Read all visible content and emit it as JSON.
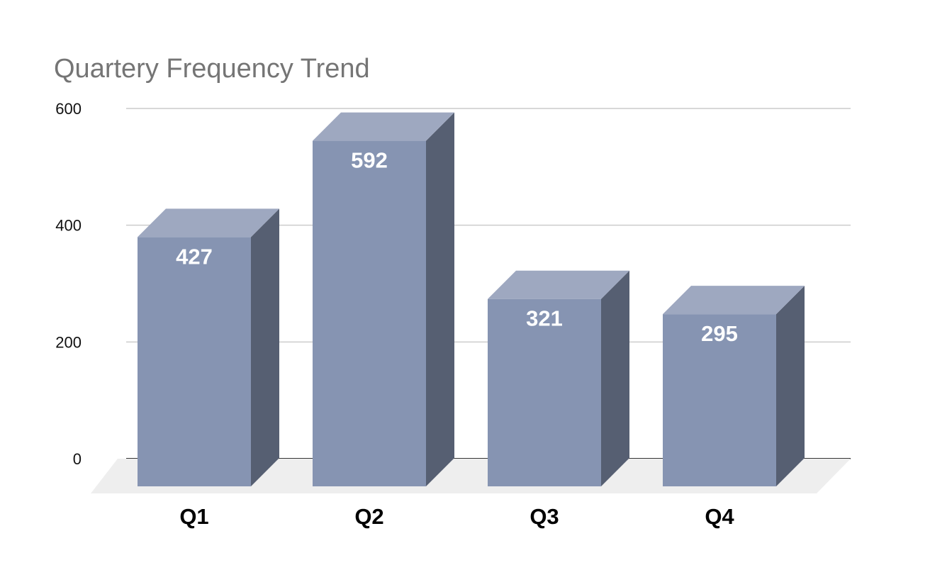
{
  "chart_data": {
    "type": "bar",
    "title": "Quartery Frequency Trend",
    "xlabel": "",
    "ylabel": "",
    "categories": [
      "Q1",
      "Q2",
      "Q3",
      "Q4"
    ],
    "values": [
      427,
      592,
      321,
      295
    ],
    "data_labels": [
      "427",
      "592",
      "321",
      "295"
    ],
    "yticks": [
      0,
      200,
      400,
      600
    ],
    "ytick_labels": [
      "0",
      "200",
      "400",
      "600"
    ],
    "ylim": [
      0,
      600
    ],
    "grid": true,
    "legend": "none",
    "style": "3d-column",
    "colors": {
      "front": "#8694B2",
      "top": "#9EA8C0",
      "side": "#565F72",
      "floor": "#EEEEEE",
      "grid": "#CCCCCC",
      "baseline": "#333333"
    }
  }
}
